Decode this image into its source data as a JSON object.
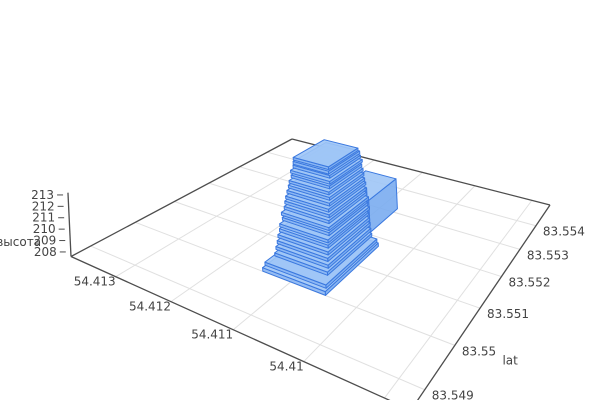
{
  "figure": {
    "kind": "plotly-3d-scene",
    "background": "#ffffff"
  },
  "chart_data": {
    "type": "mesh3d",
    "description": "3D stacked contour slabs of a building footprint rendered in a perspective scene with a floor grid",
    "xaxis": {
      "title": "",
      "tick_labels": [
        "54.413",
        "54.412",
        "54.411",
        "54.41"
      ],
      "tick_values": [
        54.413,
        54.412,
        54.411,
        54.41
      ],
      "grid_values": [
        54.413,
        54.412,
        54.411,
        54.41,
        54.409
      ],
      "range": [
        54.4087,
        54.4139
      ]
    },
    "yaxis": {
      "title": "lat",
      "tick_labels": [
        "83.549",
        "83.55",
        "83.551",
        "83.552",
        "83.553",
        "83.554"
      ],
      "tick_values": [
        83.549,
        83.55,
        83.551,
        83.552,
        83.553,
        83.554
      ],
      "grid_values": [
        83.549,
        83.55,
        83.551,
        83.552,
        83.553,
        83.554
      ],
      "range": [
        83.5486,
        83.555
      ]
    },
    "zaxis": {
      "title": "высота",
      "tick_labels": [
        "208",
        "209",
        "210",
        "211",
        "212",
        "213"
      ],
      "tick_values": [
        208,
        209,
        210,
        211,
        212,
        213
      ],
      "range": [
        207.6,
        213.2
      ]
    },
    "colors": {
      "mesh_top": "#9ec5f6",
      "mesh_side_left": "#88b5f3",
      "mesh_side_right": "#7aacf0",
      "mesh_edge": "#3a78df",
      "grid_line": "#e0e0e0",
      "axis_line": "#4d4d4d",
      "tick_text": "#444444"
    },
    "boxes": [
      {
        "z0": 207.65,
        "z1": 210.7,
        "x": 54.41102,
        "y": 83.5526,
        "hx": 0.00028,
        "hy": 0.00055
      },
      {
        "z0": 207.65,
        "z1": 211.0,
        "x": 54.41118,
        "y": 83.55195,
        "hx": 0.00026,
        "hy": 0.00042
      },
      {
        "z0": 207.65,
        "z1": 207.95,
        "x": 54.41095,
        "y": 83.55085,
        "hx": 0.0005,
        "hy": 0.00086
      },
      {
        "z0": 207.95,
        "z1": 208.22,
        "x": 54.41097,
        "y": 83.5509,
        "hx": 0.00049,
        "hy": 0.00083
      },
      {
        "z0": 208.22,
        "z1": 208.48,
        "x": 54.41101,
        "y": 83.55104,
        "hx": 0.00043,
        "hy": 0.00073
      },
      {
        "z0": 208.48,
        "z1": 208.74,
        "x": 54.41105,
        "y": 83.55112,
        "hx": 0.00043,
        "hy": 0.00071
      },
      {
        "z0": 208.74,
        "z1": 209.0,
        "x": 54.41109,
        "y": 83.55121,
        "hx": 0.00042,
        "hy": 0.00071
      },
      {
        "z0": 209.0,
        "z1": 209.26,
        "x": 54.41113,
        "y": 83.55129,
        "hx": 0.00042,
        "hy": 0.0007
      },
      {
        "z0": 209.26,
        "z1": 209.52,
        "x": 54.41117,
        "y": 83.55138,
        "hx": 0.00041,
        "hy": 0.00069
      },
      {
        "z0": 209.52,
        "z1": 209.78,
        "x": 54.4112,
        "y": 83.55146,
        "hx": 0.00041,
        "hy": 0.00071
      },
      {
        "z0": 209.78,
        "z1": 210.04,
        "x": 54.41124,
        "y": 83.55155,
        "hx": 0.0004,
        "hy": 0.00067
      },
      {
        "z0": 210.04,
        "z1": 210.3,
        "x": 54.41128,
        "y": 83.55163,
        "hx": 0.00041,
        "hy": 0.00069
      },
      {
        "z0": 210.3,
        "z1": 210.56,
        "x": 54.41132,
        "y": 83.55172,
        "hx": 0.00039,
        "hy": 0.00066
      },
      {
        "z0": 210.56,
        "z1": 210.82,
        "x": 54.41136,
        "y": 83.5518,
        "hx": 0.00039,
        "hy": 0.00065
      },
      {
        "z0": 210.82,
        "z1": 211.08,
        "x": 54.4114,
        "y": 83.55189,
        "hx": 0.00038,
        "hy": 0.00066
      },
      {
        "z0": 211.08,
        "z1": 211.34,
        "x": 54.41144,
        "y": 83.55197,
        "hx": 0.00038,
        "hy": 0.00063
      },
      {
        "z0": 211.34,
        "z1": 211.6,
        "x": 54.41148,
        "y": 83.55206,
        "hx": 0.00037,
        "hy": 0.00062
      },
      {
        "z0": 211.6,
        "z1": 211.86,
        "x": 54.41152,
        "y": 83.55214,
        "hx": 0.00036,
        "hy": 0.00062
      },
      {
        "z0": 211.86,
        "z1": 212.12,
        "x": 54.41156,
        "y": 83.55223,
        "hx": 0.00035,
        "hy": 0.00059
      },
      {
        "z0": 212.12,
        "z1": 212.38,
        "x": 54.4116,
        "y": 83.55231,
        "hx": 0.00036,
        "hy": 0.0006
      },
      {
        "z0": 212.38,
        "z1": 212.64,
        "x": 54.41164,
        "y": 83.5524,
        "hx": 0.00034,
        "hy": 0.00057
      },
      {
        "z0": 212.64,
        "z1": 212.92,
        "x": 54.41167,
        "y": 83.55245,
        "hx": 0.00033,
        "hy": 0.00058
      },
      {
        "z0": 212.92,
        "z1": 213.18,
        "x": 54.4117,
        "y": 83.55248,
        "hx": 0.00033,
        "hy": 0.00055
      }
    ]
  }
}
